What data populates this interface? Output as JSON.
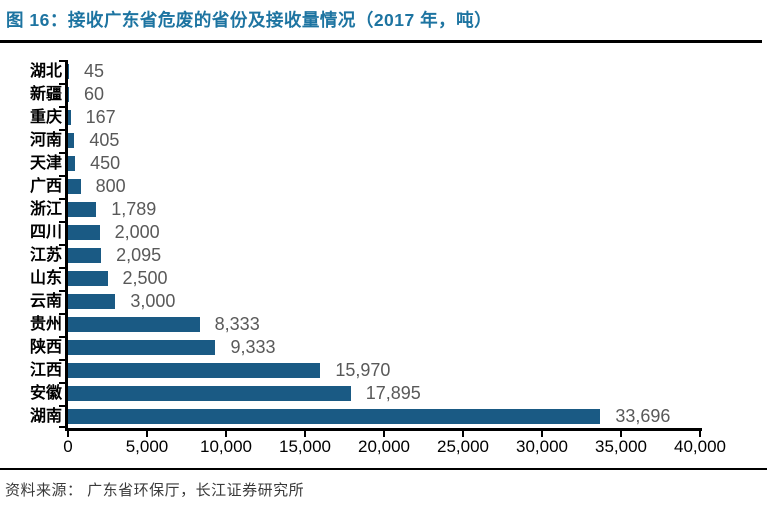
{
  "header": {
    "title": "图 16：接收广东省危废的省份及接收量情况（2017 年，吨）"
  },
  "footer": {
    "source": "资料来源： 广东省环保厅，长江证券研究所"
  },
  "colors": {
    "bar": "#1a5a84",
    "title": "#1d74a1",
    "value_label": "#595959",
    "axis": "#000000"
  },
  "chart_data": {
    "type": "bar",
    "orientation": "horizontal",
    "title": "接收广东省危废的省份及接收量情况（2017 年，吨）",
    "categories": [
      "湖北",
      "新疆",
      "重庆",
      "河南",
      "天津",
      "广西",
      "浙江",
      "四川",
      "江苏",
      "山东",
      "云南",
      "贵州",
      "陕西",
      "江西",
      "安徽",
      "湖南"
    ],
    "values": [
      45,
      60,
      167,
      405,
      450,
      800,
      1789,
      2000,
      2095,
      2500,
      3000,
      8333,
      9333,
      15970,
      17895,
      33696
    ],
    "value_labels": [
      "45",
      "60",
      "167",
      "405",
      "450",
      "800",
      "1,789",
      "2,000",
      "2,095",
      "2,500",
      "3,000",
      "8,333",
      "9,333",
      "15,970",
      "17,895",
      "33,696"
    ],
    "xlabel": "",
    "ylabel": "",
    "xlim": [
      0,
      40000
    ],
    "xticks": [
      0,
      5000,
      10000,
      15000,
      20000,
      25000,
      30000,
      35000,
      40000
    ],
    "xtick_labels": [
      "0",
      "5,000",
      "10,000",
      "15,000",
      "20,000",
      "25,000",
      "30,000",
      "35,000",
      "40,000"
    ],
    "grid": false,
    "legend": null
  }
}
